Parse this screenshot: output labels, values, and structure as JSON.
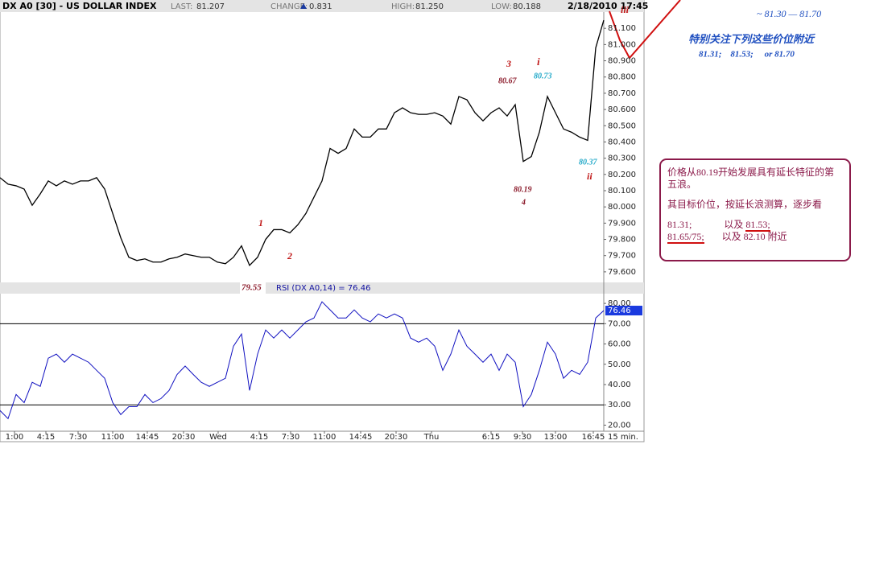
{
  "header": {
    "title": "DX A0 [30] - US DOLLAR INDEX",
    "last_label": "LAST:",
    "last": "81.207",
    "change_label": "CHANGE:",
    "change": "0.831",
    "high_label": "HIGH:",
    "high": "81.250",
    "low_label": "LOW:",
    "low": "80.188",
    "datetime": "2/18/2010 17:45"
  },
  "chart_data": [
    {
      "type": "line",
      "color": "#000000",
      "values": [
        80.18,
        80.14,
        80.13,
        80.11,
        80.01,
        80.08,
        80.16,
        80.13,
        80.16,
        80.14,
        80.16,
        80.16,
        80.18,
        80.11,
        79.96,
        79.81,
        79.69,
        79.67,
        79.68,
        79.66,
        79.66,
        79.68,
        79.69,
        79.71,
        79.7,
        79.69,
        79.69,
        79.66,
        79.65,
        79.69,
        79.76,
        79.64,
        79.69,
        79.8,
        79.86,
        79.86,
        79.84,
        79.89,
        79.96,
        80.06,
        80.16,
        80.36,
        80.33,
        80.36,
        80.48,
        80.43,
        80.43,
        80.48,
        80.48,
        80.58,
        80.61,
        80.58,
        80.57,
        80.57,
        80.58,
        80.56,
        80.51,
        80.68,
        80.66,
        80.58,
        80.53,
        80.58,
        80.61,
        80.56,
        80.63,
        80.28,
        80.31,
        80.46,
        80.68,
        80.58,
        80.48,
        80.46,
        80.43,
        80.41,
        80.98,
        81.15
      ],
      "xlim": [
        0,
        75
      ],
      "ylim": [
        79.54,
        81.2
      ],
      "yticks": [
        {
          "value": 79.6,
          "label": "79.600"
        },
        {
          "value": 79.7,
          "label": "79.700"
        },
        {
          "value": 79.8,
          "label": "79.800"
        },
        {
          "value": 79.9,
          "label": "79.900"
        },
        {
          "value": 80.0,
          "label": "80.000"
        },
        {
          "value": 80.1,
          "label": "80.100"
        },
        {
          "value": 80.2,
          "label": "80.200"
        },
        {
          "value": 80.3,
          "label": "80.300"
        },
        {
          "value": 80.4,
          "label": "80.400"
        },
        {
          "value": 80.5,
          "label": "80.500"
        },
        {
          "value": 80.6,
          "label": "80.600"
        },
        {
          "value": 80.7,
          "label": "80.700"
        },
        {
          "value": 80.8,
          "label": "80.800"
        },
        {
          "value": 80.9,
          "label": "80.900"
        },
        {
          "value": 81.0,
          "label": "81.000"
        },
        {
          "value": 81.1,
          "label": "81.100"
        }
      ]
    },
    {
      "type": "line",
      "title": "RSI (DX A0,14) = 76.46",
      "color": "#1010c0",
      "values": [
        27.2,
        23.2,
        35.1,
        31.1,
        41.1,
        39.1,
        53.0,
        55.0,
        51.0,
        55.0,
        53.0,
        51.0,
        47.0,
        43.1,
        31.1,
        25.2,
        29.1,
        29.1,
        35.1,
        31.1,
        33.1,
        37.1,
        45.0,
        49.1,
        45.0,
        41.1,
        39.1,
        41.1,
        43.1,
        58.9,
        64.9,
        37.1,
        55.0,
        66.9,
        62.9,
        66.9,
        62.9,
        66.9,
        70.9,
        72.8,
        80.8,
        76.8,
        72.8,
        72.8,
        76.8,
        72.8,
        70.9,
        74.8,
        72.8,
        74.8,
        72.8,
        62.9,
        60.9,
        62.9,
        58.9,
        47.0,
        55.0,
        66.9,
        58.9,
        55.0,
        51.0,
        55.0,
        47.0,
        55.0,
        51.0,
        29.1,
        35.1,
        47.0,
        60.9,
        55.0,
        43.1,
        47.0,
        45.0,
        51.0,
        72.8,
        76.46
      ],
      "xlim": [
        0,
        75
      ],
      "ylim": [
        17,
        84
      ],
      "hlines": [
        70,
        30
      ],
      "yticks": [
        {
          "value": 20,
          "label": "20.00"
        },
        {
          "value": 30,
          "label": "30.00"
        },
        {
          "value": 40,
          "label": "40.00"
        },
        {
          "value": 50,
          "label": "50.00"
        },
        {
          "value": 60,
          "label": "60.00"
        },
        {
          "value": 70,
          "label": "70.00"
        },
        {
          "value": 80,
          "label": "80.00"
        }
      ],
      "xticks": [
        {
          "value": 1.8,
          "label": "1:00"
        },
        {
          "value": 5.7,
          "label": "4:15"
        },
        {
          "value": 9.7,
          "label": "7:30"
        },
        {
          "value": 14,
          "label": "11:00"
        },
        {
          "value": 18.3,
          "label": "14:45"
        },
        {
          "value": 22.8,
          "label": "20:30"
        },
        {
          "value": 27.1,
          "label": "Wed"
        },
        {
          "value": 32.2,
          "label": "4:15"
        },
        {
          "value": 36.1,
          "label": "7:30"
        },
        {
          "value": 40.3,
          "label": "11:00"
        },
        {
          "value": 44.8,
          "label": "14:45"
        },
        {
          "value": 49.2,
          "label": "20:30"
        },
        {
          "value": 53.6,
          "label": "Thu"
        },
        {
          "value": 61,
          "label": "6:15"
        },
        {
          "value": 64.9,
          "label": "9:30"
        },
        {
          "value": 69,
          "label": "13:00"
        },
        {
          "value": 73.7,
          "label": "16:45"
        }
      ],
      "x_unit": "15 min."
    }
  ],
  "annotations": [
    "3",
    "80.67",
    "i",
    "80.73",
    "80.37",
    "ii",
    "80.19",
    "4",
    "1",
    "2",
    "79.55",
    "iii"
  ],
  "notes": {
    "range": "~ 81.30 — 81.70",
    "heading": "特别关注下列这些价位附近",
    "levels": "81.31;    81.53;     or 81.70"
  },
  "box": {
    "line1": "价格从80.19开始发展具有延长特征的第五浪。",
    "line2": "其目标价位，按延长浪测算，逐步看",
    "a": "81.31;",
    "b": "以及",
    "c": "81.53;",
    "d": "81.65/75;",
    "e": "以及 82.10 附近"
  }
}
